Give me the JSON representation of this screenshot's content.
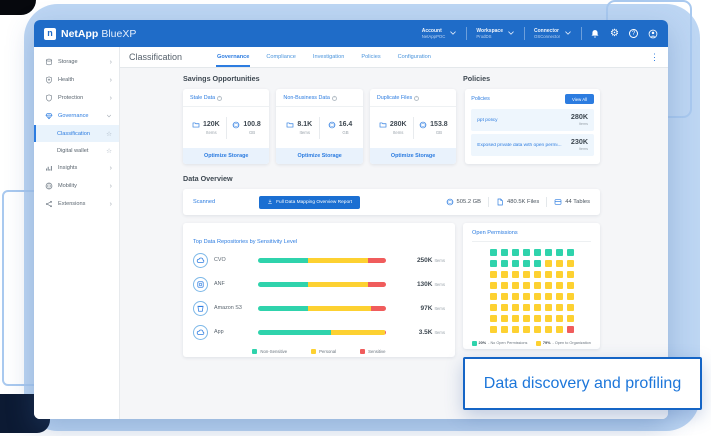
{
  "caption": {
    "text": "Data discovery and profiling"
  },
  "glyphs": {
    "gear": "⚙",
    "help": "?",
    "info": "i",
    "star": "☆",
    "chevron_right": "›",
    "dots": "⋮",
    "logo": "n"
  },
  "app_header": {
    "brand": "NetApp",
    "product": "BlueXP",
    "menus": [
      {
        "label": "Account",
        "value": "NetAppPOC"
      },
      {
        "label": "Workspace",
        "value": "ProdDS"
      },
      {
        "label": "Connector",
        "value": "OSConnector"
      }
    ]
  },
  "subheader": {
    "title": "Classification",
    "tabs": [
      {
        "label": "Governance",
        "active": true
      },
      {
        "label": "Compliance",
        "active": false
      },
      {
        "label": "Investigation",
        "active": false
      },
      {
        "label": "Policies",
        "active": false
      },
      {
        "label": "Configuration",
        "active": false
      }
    ]
  },
  "sidebar": {
    "items": [
      {
        "label": "Storage"
      },
      {
        "label": "Health"
      },
      {
        "label": "Protection"
      },
      {
        "label": "Governance",
        "active": true
      },
      {
        "label": "Classification",
        "sub": true,
        "active": true
      },
      {
        "label": "Digital wallet",
        "sub": true
      },
      {
        "label": "Insights"
      },
      {
        "label": "Mobility"
      },
      {
        "label": "Extensions"
      }
    ]
  },
  "savings": {
    "heading": "Savings Opportunities",
    "cards": [
      {
        "title": "Stale Data",
        "items_value": "120K",
        "items_label": "Items",
        "size_value": "100.8",
        "size_label": "GB",
        "action": "Optimize Storage"
      },
      {
        "title": "Non-Business Data",
        "items_value": "8.1K",
        "items_label": "Items",
        "size_value": "16.4",
        "size_label": "GB",
        "action": "Optimize Storage"
      },
      {
        "title": "Duplicate Files",
        "items_value": "280K",
        "items_label": "Items",
        "size_value": "153.8",
        "size_label": "GB",
        "action": "Optimize Storage"
      }
    ]
  },
  "policies": {
    "heading": "Policies",
    "card_title": "Policies",
    "view_all": "View All",
    "rows": [
      {
        "name": "ppt policy",
        "value": "280K",
        "unit": "Items"
      },
      {
        "name": "Exposed private data with open permi...",
        "value": "230K",
        "unit": "Items"
      }
    ]
  },
  "overview": {
    "heading": "Data Overview",
    "scanned": "Scanned",
    "report_button": "Full Data Mapping Overview Report",
    "stats": [
      {
        "icon": "globe-icon",
        "value": "505.2 GB"
      },
      {
        "icon": "file-icon",
        "value": "480.5K Files"
      },
      {
        "icon": "table-icon",
        "value": "44 Tables"
      }
    ]
  },
  "chart_data": [
    {
      "type": "bar",
      "title": "Top Data Repositories by Sensitivity Level",
      "colors": {
        "ns": "#2fd3ac",
        "p": "#fdd131",
        "s": "#f05c5c"
      },
      "rows": [
        {
          "name": "CVO",
          "total": "250K",
          "unit": "Items",
          "segments": [
            {
              "k": "ns",
              "pct": 39
            },
            {
              "k": "p",
              "pct": 47
            },
            {
              "k": "s",
              "pct": 14
            }
          ]
        },
        {
          "name": "ANF",
          "total": "130K",
          "unit": "Items",
          "segments": [
            {
              "k": "ns",
              "pct": 39
            },
            {
              "k": "p",
              "pct": 47
            },
            {
              "k": "s",
              "pct": 14
            }
          ]
        },
        {
          "name": "Amazon S3",
          "total": "97K",
          "unit": "Items",
          "segments": [
            {
              "k": "ns",
              "pct": 39
            },
            {
              "k": "p",
              "pct": 49
            },
            {
              "k": "s",
              "pct": 12
            }
          ]
        },
        {
          "name": "App",
          "total": "3.5K",
          "unit": "Items",
          "segments": [
            {
              "k": "ns",
              "pct": 57
            },
            {
              "k": "p",
              "pct": 42
            },
            {
              "k": "s",
              "pct": 1
            }
          ]
        }
      ],
      "legend": [
        {
          "k": "ns",
          "label": "Non-Sensitive"
        },
        {
          "k": "p",
          "label": "Personal"
        },
        {
          "k": "s",
          "label": "Sensitive"
        }
      ]
    },
    {
      "type": "heatmap",
      "title": "Open Permissions",
      "cell_colors": {
        "t": "#2fd3ac",
        "y": "#fdd131",
        "r": "#f05c5c"
      },
      "grid": [
        "tttttttt",
        "tttttyyy",
        "yyyyyyyy",
        "yyyyyyyy",
        "yyyyyyyy",
        "yyyyyyyy",
        "yyyyyyyy",
        "yyyyyyyr"
      ],
      "legend": [
        {
          "k": "t",
          "pct": "20%",
          "label": "No Open Permissions"
        },
        {
          "k": "y",
          "pct": "79%",
          "label": "Open to Organization"
        }
      ]
    }
  ]
}
